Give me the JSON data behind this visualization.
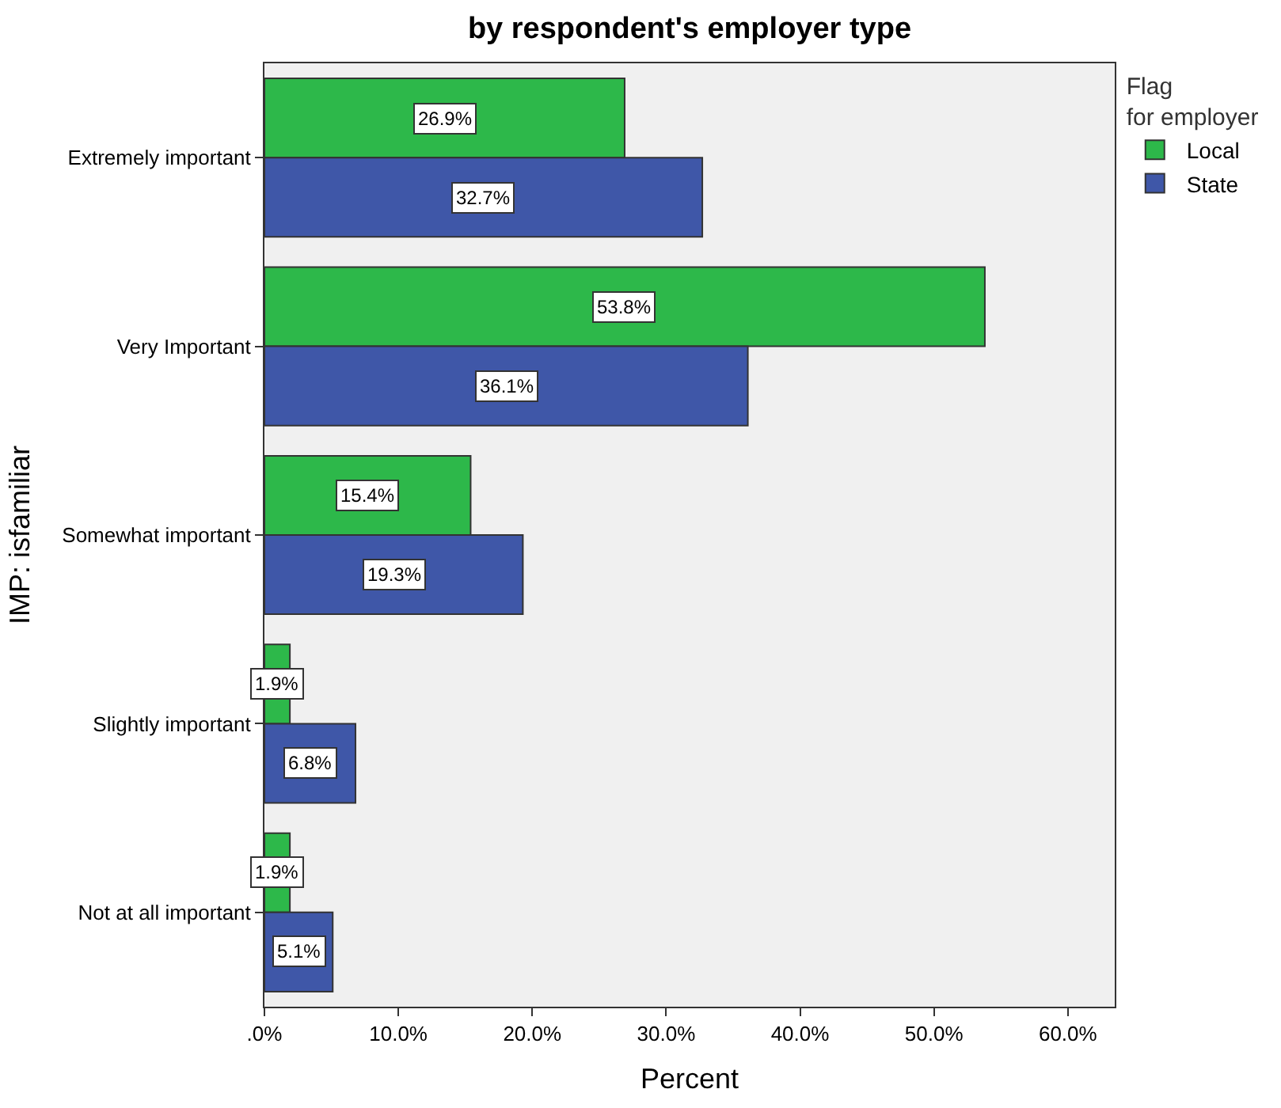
{
  "chart_data": {
    "type": "bar",
    "orientation": "horizontal",
    "title": "by respondent's employer type",
    "xlabel": "Percent",
    "ylabel": "IMP: isfamiliar",
    "legend_title": "Flag for employer",
    "legend": "top right",
    "categories": [
      "Extremely important",
      "Very Important",
      "Somewhat important",
      "Slightly important",
      "Not at all important"
    ],
    "series": [
      {
        "name": "Local",
        "color": "#2db84a",
        "values": [
          26.9,
          53.8,
          15.4,
          1.9,
          1.9
        ],
        "value_labels": [
          "26.9%",
          "53.8%",
          "15.4%",
          "1.9%",
          "1.9%"
        ]
      },
      {
        "name": "State",
        "color": "#3f57a8",
        "values": [
          32.7,
          36.1,
          19.3,
          6.8,
          5.1
        ],
        "value_labels": [
          "32.7%",
          "36.1%",
          "19.3%",
          "6.8%",
          "5.1%"
        ]
      }
    ],
    "xlim": [
      0,
      63.5
    ],
    "xticks": [
      {
        "value": 0,
        "label": ".0%"
      },
      {
        "value": 10,
        "label": "10.0%"
      },
      {
        "value": 20,
        "label": "20.0%"
      },
      {
        "value": 30,
        "label": "30.0%"
      },
      {
        "value": 40,
        "label": "40.0%"
      },
      {
        "value": 50,
        "label": "50.0%"
      },
      {
        "value": 60,
        "label": "60.0%"
      }
    ],
    "grid": false
  }
}
